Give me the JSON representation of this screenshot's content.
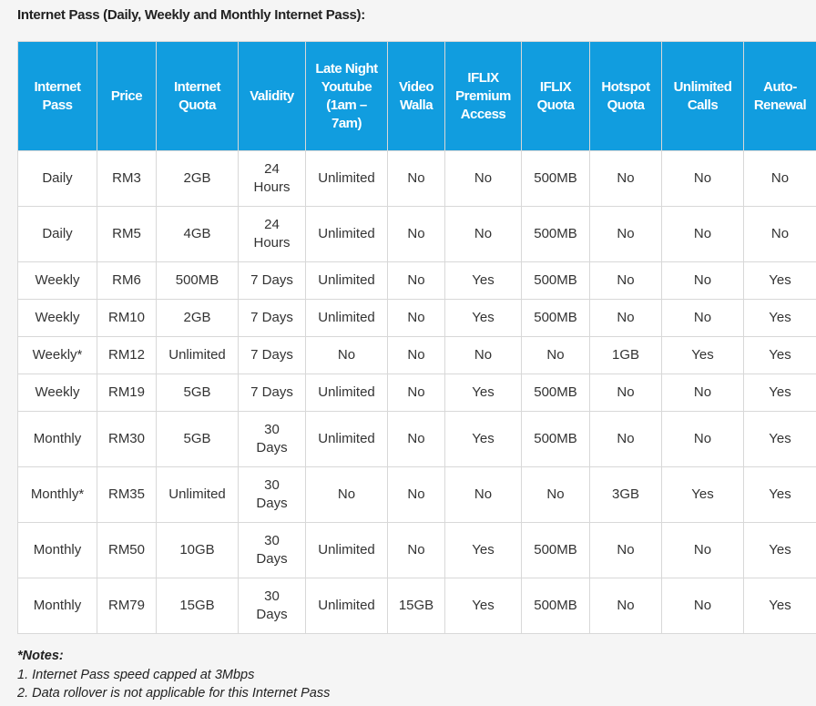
{
  "title": "Internet Pass (Daily, Weekly and Monthly Internet Pass):",
  "table": {
    "headers": [
      "Internet Pass",
      "Price",
      "Internet Quota",
      "Validity",
      "Late Night Youtube (1am – 7am)",
      "Video Walla",
      "IFLIX Premium Access",
      "IFLIX Quota",
      "Hotspot Quota",
      "Unlimited Calls",
      "Auto-Renewal"
    ],
    "rows": [
      [
        "Daily",
        "RM3",
        "2GB",
        "24 Hours",
        "Unlimited",
        "No",
        "No",
        "500MB",
        "No",
        "No",
        "No"
      ],
      [
        "Daily",
        "RM5",
        "4GB",
        "24 Hours",
        "Unlimited",
        "No",
        "No",
        "500MB",
        "No",
        "No",
        "No"
      ],
      [
        "Weekly",
        "RM6",
        "500MB",
        "7 Days",
        "Unlimited",
        "No",
        "Yes",
        "500MB",
        "No",
        "No",
        "Yes"
      ],
      [
        "Weekly",
        "RM10",
        "2GB",
        "7 Days",
        "Unlimited",
        "No",
        "Yes",
        "500MB",
        "No",
        "No",
        "Yes"
      ],
      [
        "Weekly*",
        "RM12",
        "Unlimited",
        "7 Days",
        "No",
        "No",
        "No",
        "No",
        "1GB",
        "Yes",
        "Yes"
      ],
      [
        "Weekly",
        "RM19",
        "5GB",
        "7 Days",
        "Unlimited",
        "No",
        "Yes",
        "500MB",
        "No",
        "No",
        "Yes"
      ],
      [
        "Monthly",
        "RM30",
        "5GB",
        "30 Days",
        "Unlimited",
        "No",
        "Yes",
        "500MB",
        "No",
        "No",
        "Yes"
      ],
      [
        "Monthly*",
        "RM35",
        "Unlimited",
        "30 Days",
        "No",
        "No",
        "No",
        "No",
        "3GB",
        "Yes",
        "Yes"
      ],
      [
        "Monthly",
        "RM50",
        "10GB",
        "30 Days",
        "Unlimited",
        "No",
        "Yes",
        "500MB",
        "No",
        "No",
        "Yes"
      ],
      [
        "Monthly",
        "RM79",
        "15GB",
        "30 Days",
        "Unlimited",
        "15GB",
        "Yes",
        "500MB",
        "No",
        "No",
        "Yes"
      ]
    ]
  },
  "notes": {
    "title": "*Notes:",
    "items": [
      "1. Internet Pass speed capped at 3Mbps",
      "2. Data rollover is not applicable for this Internet Pass"
    ]
  }
}
